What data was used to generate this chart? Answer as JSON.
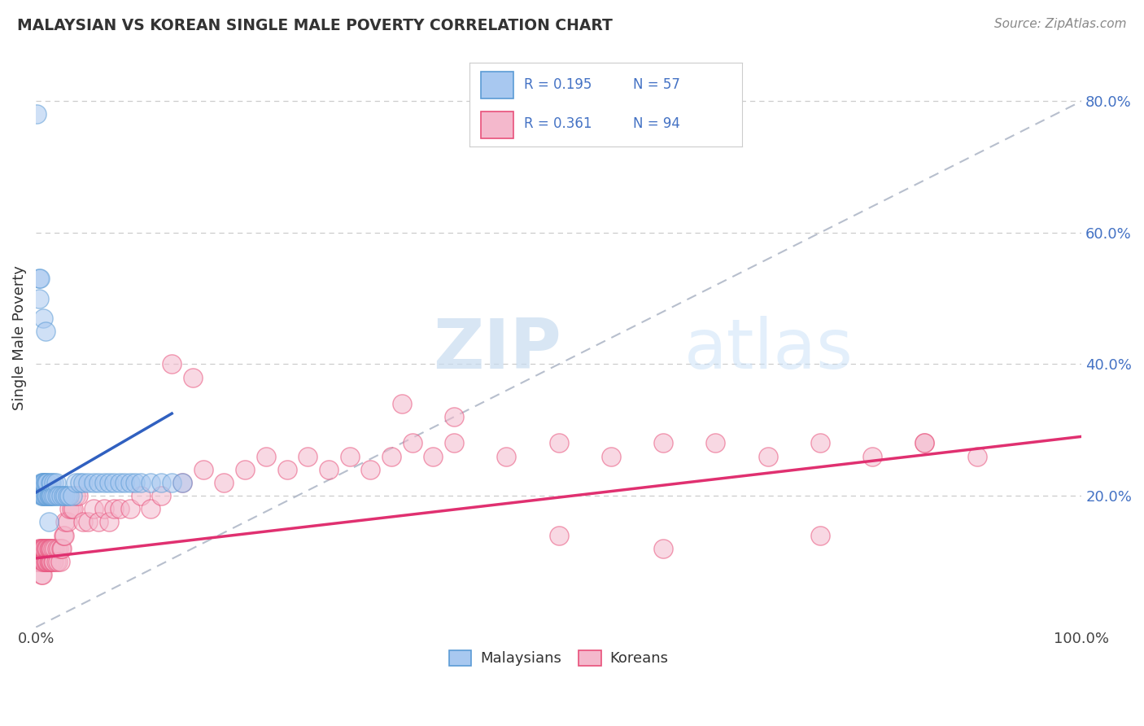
{
  "title": "MALAYSIAN VS KOREAN SINGLE MALE POVERTY CORRELATION CHART",
  "source": "Source: ZipAtlas.com",
  "ylabel": "Single Male Poverty",
  "legend_label1": "Malaysians",
  "legend_label2": "Koreans",
  "r1": 0.195,
  "n1": 57,
  "r2": 0.361,
  "n2": 94,
  "color_blue_fill": "#A8C8F0",
  "color_blue_edge": "#5B9BD5",
  "color_pink_fill": "#F4B8CC",
  "color_pink_edge": "#E8507A",
  "color_blue_line": "#3060C0",
  "color_pink_line": "#E03070",
  "color_diag": "#B0B8C8",
  "ytick_labels": [
    "20.0%",
    "40.0%",
    "60.0%",
    "80.0%"
  ],
  "ytick_values": [
    0.2,
    0.4,
    0.6,
    0.8
  ],
  "xlim": [
    0.0,
    1.0
  ],
  "ylim": [
    0.0,
    0.88
  ],
  "malaysians_x": [
    0.001,
    0.003,
    0.004,
    0.005,
    0.005,
    0.006,
    0.006,
    0.007,
    0.007,
    0.008,
    0.008,
    0.009,
    0.009,
    0.01,
    0.01,
    0.011,
    0.011,
    0.012,
    0.012,
    0.013,
    0.014,
    0.014,
    0.015,
    0.015,
    0.016,
    0.017,
    0.018,
    0.019,
    0.02,
    0.022,
    0.024,
    0.026,
    0.028,
    0.03,
    0.032,
    0.035,
    0.038,
    0.042,
    0.045,
    0.05,
    0.055,
    0.06,
    0.065,
    0.07,
    0.075,
    0.08,
    0.085,
    0.09,
    0.095,
    0.1,
    0.11,
    0.12,
    0.13,
    0.14,
    0.003,
    0.007,
    0.009
  ],
  "malaysians_y": [
    0.78,
    0.53,
    0.53,
    0.2,
    0.22,
    0.2,
    0.22,
    0.2,
    0.22,
    0.2,
    0.22,
    0.2,
    0.22,
    0.2,
    0.22,
    0.2,
    0.22,
    0.16,
    0.2,
    0.2,
    0.2,
    0.22,
    0.2,
    0.22,
    0.2,
    0.22,
    0.2,
    0.22,
    0.2,
    0.2,
    0.2,
    0.2,
    0.2,
    0.2,
    0.2,
    0.2,
    0.22,
    0.22,
    0.22,
    0.22,
    0.22,
    0.22,
    0.22,
    0.22,
    0.22,
    0.22,
    0.22,
    0.22,
    0.22,
    0.22,
    0.22,
    0.22,
    0.22,
    0.22,
    0.5,
    0.47,
    0.45
  ],
  "koreans_x": [
    0.001,
    0.002,
    0.003,
    0.003,
    0.004,
    0.004,
    0.005,
    0.005,
    0.005,
    0.006,
    0.006,
    0.006,
    0.007,
    0.007,
    0.008,
    0.008,
    0.009,
    0.009,
    0.01,
    0.01,
    0.011,
    0.011,
    0.012,
    0.012,
    0.013,
    0.013,
    0.014,
    0.014,
    0.015,
    0.015,
    0.016,
    0.016,
    0.017,
    0.018,
    0.019,
    0.02,
    0.021,
    0.022,
    0.023,
    0.024,
    0.025,
    0.026,
    0.027,
    0.028,
    0.03,
    0.032,
    0.034,
    0.036,
    0.038,
    0.04,
    0.045,
    0.05,
    0.055,
    0.06,
    0.065,
    0.07,
    0.075,
    0.08,
    0.09,
    0.1,
    0.11,
    0.12,
    0.14,
    0.16,
    0.18,
    0.2,
    0.22,
    0.24,
    0.26,
    0.28,
    0.3,
    0.32,
    0.34,
    0.36,
    0.38,
    0.4,
    0.45,
    0.5,
    0.55,
    0.6,
    0.65,
    0.7,
    0.75,
    0.8,
    0.85,
    0.9,
    0.13,
    0.15,
    0.35,
    0.4,
    0.5,
    0.6,
    0.75,
    0.85
  ],
  "koreans_y": [
    0.1,
    0.1,
    0.1,
    0.12,
    0.1,
    0.12,
    0.1,
    0.12,
    0.08,
    0.1,
    0.12,
    0.08,
    0.1,
    0.12,
    0.1,
    0.12,
    0.1,
    0.12,
    0.1,
    0.12,
    0.1,
    0.12,
    0.1,
    0.12,
    0.1,
    0.12,
    0.1,
    0.12,
    0.1,
    0.12,
    0.1,
    0.12,
    0.1,
    0.12,
    0.1,
    0.12,
    0.1,
    0.12,
    0.1,
    0.12,
    0.12,
    0.14,
    0.14,
    0.16,
    0.16,
    0.18,
    0.18,
    0.18,
    0.2,
    0.2,
    0.16,
    0.16,
    0.18,
    0.16,
    0.18,
    0.16,
    0.18,
    0.18,
    0.18,
    0.2,
    0.18,
    0.2,
    0.22,
    0.24,
    0.22,
    0.24,
    0.26,
    0.24,
    0.26,
    0.24,
    0.26,
    0.24,
    0.26,
    0.28,
    0.26,
    0.28,
    0.26,
    0.28,
    0.26,
    0.28,
    0.28,
    0.26,
    0.28,
    0.26,
    0.28,
    0.26,
    0.4,
    0.38,
    0.34,
    0.32,
    0.14,
    0.12,
    0.14,
    0.28
  ]
}
